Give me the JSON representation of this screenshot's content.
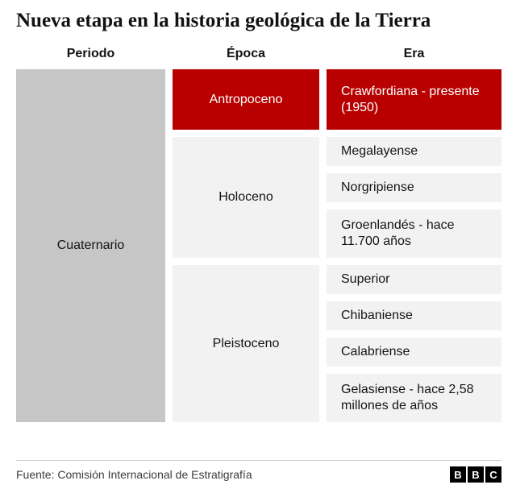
{
  "title": "Nueva etapa en la historia geológica de la Tierra",
  "headers": {
    "periodo": "Periodo",
    "epoca": "Época",
    "era": "Era"
  },
  "periodo": {
    "label": "Cuaternario"
  },
  "epocas": {
    "antropoceno": "Antropoceno",
    "holoceno": "Holoceno",
    "pleistoceno": "Pleistoceno"
  },
  "eras": {
    "crawfordiana": "Crawfordiana - presente (1950)",
    "megalayense": "Megalayense",
    "norgripiense": "Norgripiense",
    "groenlandes": "Groenlandés - hace 11.700 años",
    "superior": "Superior",
    "chibaniense": "Chibaniense",
    "calabriense": "Calabriense",
    "gelasiense": "Gelasiense - hace 2,58 millones de años"
  },
  "footer": {
    "source": "Fuente: Comisión Internacional de Estratigrafía",
    "logo_letters": [
      "B",
      "B",
      "C"
    ]
  },
  "colors": {
    "highlight_red": "#b80000",
    "period_gray": "#c6c6c6",
    "box_light": "#f2f2f2"
  },
  "chart_data": {
    "type": "table",
    "title": "Nueva etapa en la historia geológica de la Tierra",
    "columns": [
      "Periodo",
      "Época",
      "Era"
    ],
    "rows": [
      [
        "Cuaternario",
        "Antropoceno",
        "Crawfordiana - presente (1950)"
      ],
      [
        "Cuaternario",
        "Holoceno",
        "Megalayense"
      ],
      [
        "Cuaternario",
        "Holoceno",
        "Norgripiense"
      ],
      [
        "Cuaternario",
        "Holoceno",
        "Groenlandés - hace 11.700 años"
      ],
      [
        "Cuaternario",
        "Pleistoceno",
        "Superior"
      ],
      [
        "Cuaternario",
        "Pleistoceno",
        "Chibaniense"
      ],
      [
        "Cuaternario",
        "Pleistoceno",
        "Calabriense"
      ],
      [
        "Cuaternario",
        "Pleistoceno",
        "Gelasiense - hace 2,58 millones de años"
      ]
    ],
    "highlighted_cells": [
      "Antropoceno",
      "Crawfordiana - presente (1950)"
    ],
    "highlight_color": "#b80000",
    "source": "Fuente: Comisión Internacional de Estratigrafía"
  }
}
